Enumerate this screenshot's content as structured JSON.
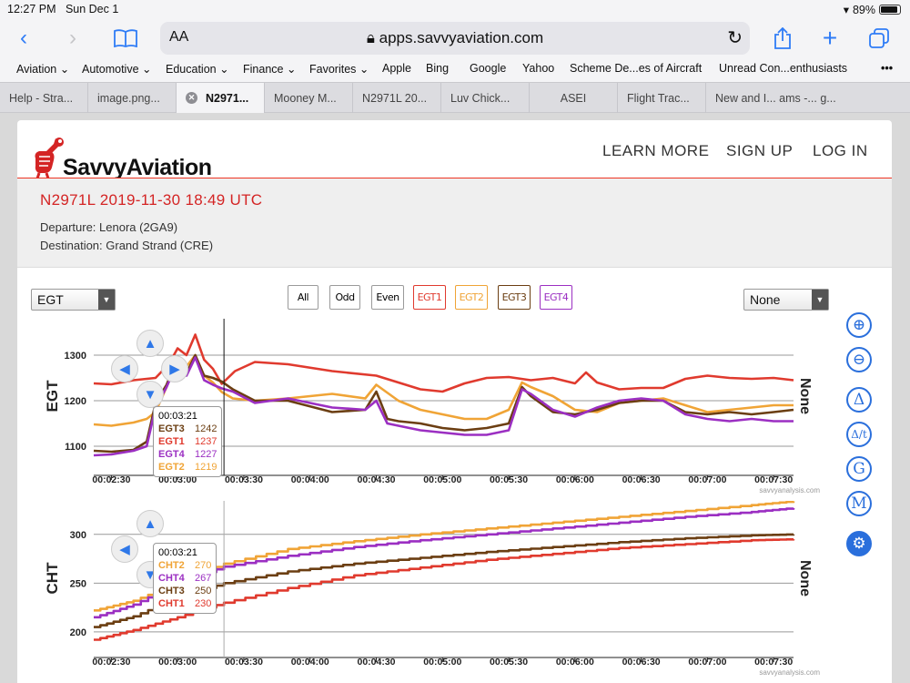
{
  "status": {
    "time": "12:27 PM",
    "date": "Sun Dec 1",
    "battery": "89%"
  },
  "browser": {
    "text_size": "AA",
    "url": "apps.savvyaviation.com",
    "bookmarks": [
      "Aviation",
      "Automotive",
      "Education",
      "Finance",
      "Favorites",
      "Apple",
      "Bing",
      "Google",
      "Yahoo",
      "Scheme De...es of Aircraft",
      "Unread Con...enthusiasts"
    ],
    "tabs": [
      "Help - Stra...",
      "image.png...",
      "N2971...",
      "Mooney M...",
      "N2971L 20...",
      "Luv Chick...",
      "ASEI",
      "Flight Trac...",
      "New and I... ams -... g..."
    ]
  },
  "site": {
    "logo_text": "SavvyAviation",
    "nav": [
      "LEARN MORE",
      "SIGN UP",
      "LOG IN"
    ],
    "flight_title": "N2971L 2019-11-30 18:49 UTC",
    "departure": "Departure: Lenora (2GA9)",
    "destination": "Destination: Grand Strand (CRE)",
    "left_select": "EGT",
    "right_select": "None",
    "filters": [
      "All",
      "Odd",
      "Even",
      "EGT1",
      "EGT2",
      "EGT3",
      "EGT4"
    ],
    "side_buttons": [
      "zoom-in",
      "zoom-out",
      "Δ",
      "Δ/t",
      "G",
      "M",
      "settings"
    ],
    "watermark": "savvyanalysis.com",
    "right_axis_label": "None"
  },
  "colors": {
    "c1": "#e03a2e",
    "c2": "#f0a436",
    "c3": "#6b3e12",
    "c4": "#9b2fc2"
  },
  "chart_data": [
    {
      "type": "line",
      "ylabel": "EGT",
      "ylim": [
        1060,
        1360
      ],
      "yticks": [
        1100,
        1200,
        1300
      ],
      "x_ticks": [
        "00:02:30",
        "00:03:00",
        "00:03:30",
        "00:04:00",
        "00:04:30",
        "00:05:00",
        "00:05:30",
        "00:06:00",
        "00:06:30",
        "00:07:00",
        "00:07:30"
      ],
      "xlim_sec": [
        142,
        459
      ],
      "cursor_sec": 201,
      "tooltip": {
        "time": "00:03:21",
        "rows": [
          [
            "EGT3",
            "1242",
            "c3"
          ],
          [
            "EGT1",
            "1237",
            "c1"
          ],
          [
            "EGT4",
            "1227",
            "c4"
          ],
          [
            "EGT2",
            "1219",
            "c2"
          ]
        ]
      },
      "series": [
        {
          "name": "EGT1",
          "color": "c1",
          "x": [
            142,
            150,
            160,
            170,
            176,
            180,
            184,
            188,
            192,
            196,
            200,
            206,
            215,
            230,
            250,
            270,
            280,
            290,
            300,
            310,
            320,
            330,
            340,
            350,
            360,
            365,
            370,
            380,
            390,
            400,
            410,
            420,
            430,
            440,
            450,
            459
          ],
          "y": [
            1238,
            1236,
            1245,
            1250,
            1280,
            1315,
            1300,
            1345,
            1290,
            1270,
            1237,
            1265,
            1285,
            1280,
            1265,
            1255,
            1240,
            1225,
            1220,
            1238,
            1250,
            1252,
            1245,
            1250,
            1238,
            1262,
            1240,
            1225,
            1228,
            1228,
            1248,
            1255,
            1250,
            1248,
            1250,
            1245
          ]
        },
        {
          "name": "EGT2",
          "color": "c2",
          "x": [
            142,
            150,
            160,
            166,
            170,
            175,
            180,
            184,
            188,
            192,
            196,
            200,
            205,
            215,
            230,
            250,
            265,
            270,
            280,
            290,
            300,
            310,
            320,
            330,
            336,
            340,
            350,
            360,
            370,
            380,
            390,
            400,
            410,
            420,
            430,
            440,
            450,
            459
          ],
          "y": [
            1148,
            1145,
            1152,
            1160,
            1175,
            1230,
            1290,
            1275,
            1300,
            1255,
            1240,
            1219,
            1205,
            1200,
            1205,
            1215,
            1205,
            1235,
            1200,
            1180,
            1170,
            1160,
            1160,
            1180,
            1240,
            1230,
            1210,
            1180,
            1175,
            1195,
            1200,
            1205,
            1190,
            1175,
            1180,
            1185,
            1190,
            1190
          ]
        },
        {
          "name": "EGT3",
          "color": "c3",
          "x": [
            142,
            150,
            160,
            166,
            170,
            175,
            180,
            184,
            188,
            192,
            196,
            200,
            205,
            215,
            230,
            250,
            265,
            270,
            275,
            280,
            290,
            300,
            310,
            320,
            330,
            336,
            340,
            350,
            360,
            370,
            380,
            390,
            400,
            410,
            420,
            430,
            440,
            450,
            459
          ],
          "y": [
            1090,
            1088,
            1092,
            1110,
            1195,
            1235,
            1295,
            1260,
            1300,
            1255,
            1250,
            1242,
            1225,
            1200,
            1200,
            1175,
            1180,
            1220,
            1160,
            1155,
            1150,
            1140,
            1135,
            1140,
            1150,
            1230,
            1210,
            1175,
            1170,
            1180,
            1195,
            1200,
            1200,
            1175,
            1170,
            1175,
            1170,
            1175,
            1180
          ]
        },
        {
          "name": "EGT4",
          "color": "c4",
          "x": [
            142,
            150,
            160,
            166,
            170,
            175,
            180,
            184,
            188,
            192,
            196,
            200,
            205,
            215,
            230,
            250,
            265,
            270,
            275,
            280,
            290,
            300,
            310,
            320,
            330,
            336,
            340,
            350,
            360,
            370,
            380,
            390,
            400,
            410,
            420,
            430,
            440,
            450,
            459
          ],
          "y": [
            1080,
            1082,
            1090,
            1100,
            1185,
            1230,
            1285,
            1255,
            1295,
            1245,
            1235,
            1227,
            1220,
            1195,
            1205,
            1185,
            1180,
            1200,
            1150,
            1145,
            1135,
            1130,
            1125,
            1125,
            1135,
            1225,
            1215,
            1180,
            1165,
            1185,
            1200,
            1205,
            1200,
            1170,
            1160,
            1155,
            1160,
            1155,
            1155
          ]
        }
      ]
    },
    {
      "type": "line",
      "ylabel": "CHT",
      "ylim": [
        185,
        325
      ],
      "yticks": [
        200,
        250,
        300
      ],
      "x_ticks": [
        "00:02:30",
        "00:03:00",
        "00:03:30",
        "00:04:00",
        "00:04:30",
        "00:05:00",
        "00:05:30",
        "00:06:00",
        "00:06:30",
        "00:07:00",
        "00:07:30"
      ],
      "xlim_sec": [
        142,
        459
      ],
      "cursor_sec": 201,
      "tooltip": {
        "time": "00:03:21",
        "rows": [
          [
            "CHT2",
            "270",
            "c2"
          ],
          [
            "CHT4",
            "267",
            "c4"
          ],
          [
            "CHT3",
            "250",
            "c3"
          ],
          [
            "CHT1",
            "230",
            "c1"
          ]
        ]
      },
      "series": [
        {
          "name": "CHT1",
          "color": "c1",
          "x": [
            142,
            160,
            180,
            201,
            230,
            260,
            290,
            320,
            350,
            380,
            410,
            440,
            459
          ],
          "y": [
            192,
            202,
            215,
            230,
            245,
            258,
            266,
            274,
            280,
            286,
            290,
            294,
            295
          ]
        },
        {
          "name": "CHT2",
          "color": "c2",
          "x": [
            142,
            160,
            180,
            201,
            230,
            260,
            290,
            320,
            350,
            380,
            410,
            440,
            459
          ],
          "y": [
            222,
            232,
            250,
            270,
            285,
            293,
            300,
            306,
            312,
            318,
            324,
            330,
            334
          ]
        },
        {
          "name": "CHT3",
          "color": "c3",
          "x": [
            142,
            160,
            180,
            201,
            230,
            260,
            290,
            320,
            350,
            380,
            410,
            440,
            459
          ],
          "y": [
            205,
            216,
            235,
            250,
            262,
            270,
            276,
            282,
            287,
            292,
            296,
            299,
            300
          ]
        },
        {
          "name": "CHT4",
          "color": "c4",
          "x": [
            142,
            160,
            180,
            201,
            230,
            260,
            290,
            320,
            350,
            380,
            410,
            440,
            459
          ],
          "y": [
            215,
            228,
            250,
            267,
            278,
            287,
            294,
            300,
            306,
            312,
            318,
            323,
            327
          ]
        }
      ]
    }
  ]
}
